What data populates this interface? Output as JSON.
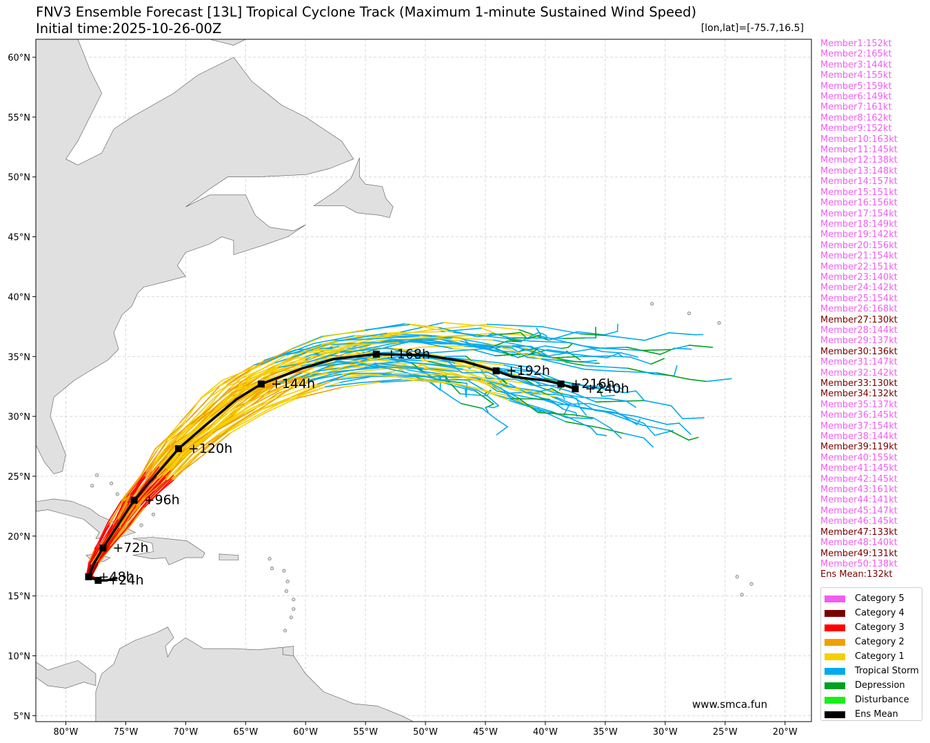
{
  "title_line1": "FNV3 Ensemble Forecast [13L] Tropical Cyclone Track (Maximum 1-minute Sustained Wind Speed)",
  "title_line2": "Initial time:2025-10-26-00Z",
  "coord_label": "[lon,lat]=[-75.7,16.5]",
  "watermark": "www.smca.fun",
  "map_extent": {
    "lon": [
      -82.5,
      -17.8
    ],
    "lat": [
      4.5,
      61.5
    ]
  },
  "x_ticks": [
    {
      "value": -80,
      "label": "80°W"
    },
    {
      "value": -75,
      "label": "75°W"
    },
    {
      "value": -70,
      "label": "70°W"
    },
    {
      "value": -65,
      "label": "65°W"
    },
    {
      "value": -60,
      "label": "60°W"
    },
    {
      "value": -55,
      "label": "55°W"
    },
    {
      "value": -50,
      "label": "50°W"
    },
    {
      "value": -45,
      "label": "45°W"
    },
    {
      "value": -40,
      "label": "40°W"
    },
    {
      "value": -35,
      "label": "35°W"
    },
    {
      "value": -30,
      "label": "30°W"
    },
    {
      "value": -25,
      "label": "25°W"
    },
    {
      "value": -20,
      "label": "20°W"
    }
  ],
  "y_ticks": [
    {
      "value": 60,
      "label": "60°N"
    },
    {
      "value": 55,
      "label": "55°N"
    },
    {
      "value": 50,
      "label": "50°N"
    },
    {
      "value": 45,
      "label": "45°N"
    },
    {
      "value": 40,
      "label": "40°N"
    },
    {
      "value": 35,
      "label": "35°N"
    },
    {
      "value": 30,
      "label": "30°N"
    },
    {
      "value": 25,
      "label": "25°N"
    },
    {
      "value": 20,
      "label": "20°N"
    },
    {
      "value": 15,
      "label": "15°N"
    },
    {
      "value": 10,
      "label": "10°N"
    },
    {
      "value": 5,
      "label": "5°N"
    }
  ],
  "colors": {
    "Category 5": "#f25df2",
    "Category 4": "#7a0000",
    "Category 3": "#ff0000",
    "Category 2": "#f0a000",
    "Category 1": "#f5d000",
    "Tropical Storm": "#00aaf0",
    "Depression": "#00a020",
    "Disturbance": "#18f018",
    "Ens Mean": "#000000",
    "land": "#e0e0e0",
    "coast": "#555555",
    "grid": "#d8d8d8"
  },
  "members": [
    {
      "text": "Member1:152kt",
      "color": "#f25df2"
    },
    {
      "text": "Member2:165kt",
      "color": "#f25df2"
    },
    {
      "text": "Member3:144kt",
      "color": "#f25df2"
    },
    {
      "text": "Member4:155kt",
      "color": "#f25df2"
    },
    {
      "text": "Member5:159kt",
      "color": "#f25df2"
    },
    {
      "text": "Member6:149kt",
      "color": "#f25df2"
    },
    {
      "text": "Member7:161kt",
      "color": "#f25df2"
    },
    {
      "text": "Member8:162kt",
      "color": "#f25df2"
    },
    {
      "text": "Member9:152kt",
      "color": "#f25df2"
    },
    {
      "text": "Member10:163kt",
      "color": "#f25df2"
    },
    {
      "text": "Member11:145kt",
      "color": "#f25df2"
    },
    {
      "text": "Member12:138kt",
      "color": "#f25df2"
    },
    {
      "text": "Member13:148kt",
      "color": "#f25df2"
    },
    {
      "text": "Member14:157kt",
      "color": "#f25df2"
    },
    {
      "text": "Member15:151kt",
      "color": "#f25df2"
    },
    {
      "text": "Member16:156kt",
      "color": "#f25df2"
    },
    {
      "text": "Member17:154kt",
      "color": "#f25df2"
    },
    {
      "text": "Member18:149kt",
      "color": "#f25df2"
    },
    {
      "text": "Member19:142kt",
      "color": "#f25df2"
    },
    {
      "text": "Member20:156kt",
      "color": "#f25df2"
    },
    {
      "text": "Member21:154kt",
      "color": "#f25df2"
    },
    {
      "text": "Member22:151kt",
      "color": "#f25df2"
    },
    {
      "text": "Member23:140kt",
      "color": "#f25df2"
    },
    {
      "text": "Member24:142kt",
      "color": "#f25df2"
    },
    {
      "text": "Member25:154kt",
      "color": "#f25df2"
    },
    {
      "text": "Member26:168kt",
      "color": "#f25df2"
    },
    {
      "text": "Member27:130kt",
      "color": "#7a0000"
    },
    {
      "text": "Member28:144kt",
      "color": "#f25df2"
    },
    {
      "text": "Member29:137kt",
      "color": "#f25df2"
    },
    {
      "text": "Member30:136kt",
      "color": "#7a0000"
    },
    {
      "text": "Member31:147kt",
      "color": "#f25df2"
    },
    {
      "text": "Member32:142kt",
      "color": "#f25df2"
    },
    {
      "text": "Member33:130kt",
      "color": "#7a0000"
    },
    {
      "text": "Member34:132kt",
      "color": "#7a0000"
    },
    {
      "text": "Member35:137kt",
      "color": "#f25df2"
    },
    {
      "text": "Member36:145kt",
      "color": "#f25df2"
    },
    {
      "text": "Member37:154kt",
      "color": "#f25df2"
    },
    {
      "text": "Member38:144kt",
      "color": "#f25df2"
    },
    {
      "text": "Member39:119kt",
      "color": "#7a0000"
    },
    {
      "text": "Member40:155kt",
      "color": "#f25df2"
    },
    {
      "text": "Member41:145kt",
      "color": "#f25df2"
    },
    {
      "text": "Member42:145kt",
      "color": "#f25df2"
    },
    {
      "text": "Member43:161kt",
      "color": "#f25df2"
    },
    {
      "text": "Member44:141kt",
      "color": "#f25df2"
    },
    {
      "text": "Member45:147kt",
      "color": "#f25df2"
    },
    {
      "text": "Member46:145kt",
      "color": "#f25df2"
    },
    {
      "text": "Member47:133kt",
      "color": "#7a0000"
    },
    {
      "text": "Member48:140kt",
      "color": "#f25df2"
    },
    {
      "text": "Member49:131kt",
      "color": "#7a0000"
    },
    {
      "text": "Member50:138kt",
      "color": "#f25df2"
    },
    {
      "text": "Ens Mean:132kt",
      "color": "#7a0000"
    }
  ],
  "legend": [
    {
      "label": "Category 5",
      "color": "#f25df2"
    },
    {
      "label": "Category 4",
      "color": "#7a0000"
    },
    {
      "label": "Category 3",
      "color": "#ff0000"
    },
    {
      "label": "Category 2",
      "color": "#f0a000"
    },
    {
      "label": "Category 1",
      "color": "#f5d000"
    },
    {
      "label": "Tropical Storm",
      "color": "#00aaf0"
    },
    {
      "label": "Depression",
      "color": "#00a020"
    },
    {
      "label": "Disturbance",
      "color": "#18f018"
    },
    {
      "label": "Ens Mean",
      "color": "#000000"
    }
  ],
  "ens_mean": {
    "track": [
      [
        -75.7,
        16.5
      ],
      [
        -76.6,
        16.3
      ],
      [
        -77.3,
        16.3
      ],
      [
        -78.1,
        16.6
      ],
      [
        -77.6,
        17.8
      ],
      [
        -76.9,
        19.0
      ],
      [
        -75.6,
        21.0
      ],
      [
        -74.3,
        23.0
      ],
      [
        -72.4,
        25.2
      ],
      [
        -70.6,
        27.3
      ],
      [
        -68.3,
        29.3
      ],
      [
        -65.8,
        31.4
      ],
      [
        -63.7,
        32.7
      ],
      [
        -60.3,
        34.0
      ],
      [
        -57.6,
        34.8
      ],
      [
        -54.1,
        35.2
      ],
      [
        -50.0,
        35.1
      ],
      [
        -46.8,
        34.6
      ],
      [
        -44.1,
        33.8
      ],
      [
        -42.7,
        33.3
      ],
      [
        -40.0,
        33.0
      ],
      [
        -38.7,
        32.7
      ],
      [
        -37.8,
        32.4
      ],
      [
        -37.5,
        32.3
      ]
    ],
    "points": [
      {
        "lon": -77.3,
        "lat": 16.3,
        "label": "+24h"
      },
      {
        "lon": -78.1,
        "lat": 16.6,
        "label": "+48h"
      },
      {
        "lon": -76.9,
        "lat": 19.0,
        "label": "+72h"
      },
      {
        "lon": -74.3,
        "lat": 23.0,
        "label": "+96h"
      },
      {
        "lon": -70.6,
        "lat": 27.3,
        "label": "+120h"
      },
      {
        "lon": -63.7,
        "lat": 32.7,
        "label": "+144h"
      },
      {
        "lon": -54.1,
        "lat": 35.2,
        "label": "+168h"
      },
      {
        "lon": -44.1,
        "lat": 33.8,
        "label": "+192h"
      },
      {
        "lon": -38.7,
        "lat": 32.7,
        "label": "+216h"
      },
      {
        "lon": -37.5,
        "lat": 32.3,
        "label": "+240h"
      }
    ]
  }
}
